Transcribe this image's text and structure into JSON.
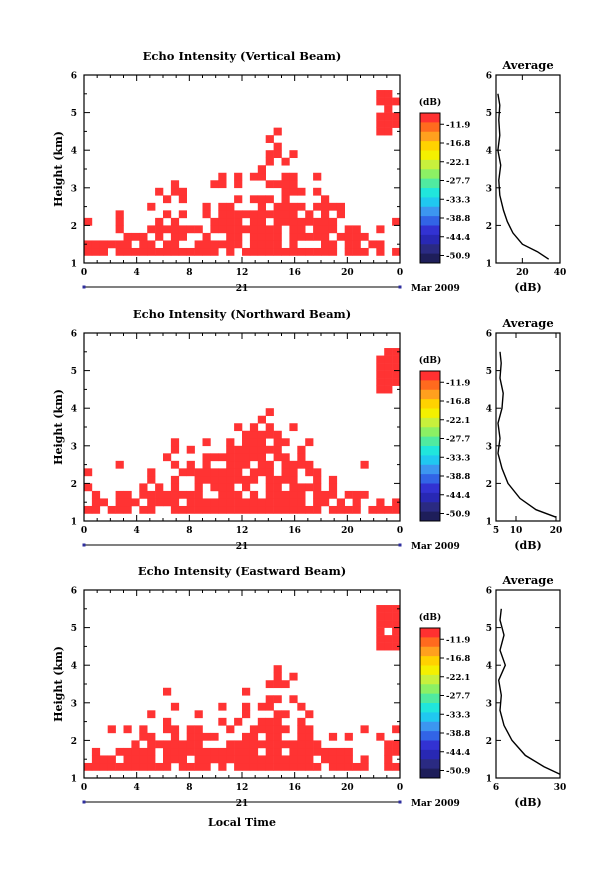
{
  "figure": {
    "date_label": "Mar 2009",
    "day_label": "21",
    "xlabel": "Local Time",
    "time_ticks": [
      "0",
      "4",
      "8",
      "12",
      "16",
      "20",
      "0"
    ],
    "height_ticks": [
      "1",
      "2",
      "3",
      "4",
      "5",
      "6"
    ],
    "ylabel": "Height (km)",
    "avg_title": "Average",
    "avg_xlabel": "(dB)",
    "colorbar_unit": "(dB)",
    "colorbar_labels": [
      "-11.9",
      "-16.8",
      "-22.1",
      "-27.7",
      "-33.3",
      "-38.8",
      "-44.4",
      "-50.9"
    ],
    "colorbar_colors": [
      "#ff3030",
      "#ff6a1e",
      "#ffa01e",
      "#ffd200",
      "#f4f000",
      "#c8f03c",
      "#8cf064",
      "#50eaa0",
      "#20e6dc",
      "#20c8f0",
      "#3c96f0",
      "#3264e6",
      "#3232d2",
      "#2828b4",
      "#2a2a82",
      "#1e1e5a"
    ],
    "echo_color": "#ff3333"
  },
  "panels": [
    {
      "title": "Echo Intensity (Vertical Beam)",
      "avg_ticks": [
        "20",
        "40"
      ],
      "avg_xlim": [
        6,
        40
      ],
      "height_top": [
        1.4,
        1.6,
        1.6,
        1.6,
        1.6,
        1.8,
        1.8,
        1.8,
        2.2,
        2.4,
        2.4,
        2.4,
        2.4,
        2.4,
        2.3,
        2.5,
        2.5,
        2.6,
        2.6,
        2.8,
        3.0,
        3.2,
        3.6,
        3.9,
        4.3,
        3.8,
        3.4,
        3.4,
        3.0,
        2.8,
        2.8,
        2.6,
        2.4,
        2.2,
        2.0,
        1.8,
        1.6,
        1.6,
        1.4,
        1.4
      ],
      "cloud_range": [
        4.4,
        5.5
      ],
      "avg_profile": [
        [
          34.0,
          1.1
        ],
        [
          28.0,
          1.3
        ],
        [
          20.0,
          1.5
        ],
        [
          15.0,
          1.8
        ],
        [
          12.0,
          2.1
        ],
        [
          10.0,
          2.4
        ],
        [
          8.0,
          2.8
        ],
        [
          7.5,
          3.2
        ],
        [
          8.5,
          3.6
        ],
        [
          7.0,
          4.0
        ],
        [
          8.0,
          4.4
        ],
        [
          7.5,
          4.8
        ],
        [
          8.0,
          5.2
        ],
        [
          7.0,
          5.5
        ]
      ]
    },
    {
      "title": "Echo Intensity (Northward Beam)",
      "avg_ticks": [
        "5",
        "10",
        "20"
      ],
      "avg_xlim": [
        5,
        21
      ],
      "height_top": [
        1.6,
        1.8,
        1.8,
        1.6,
        1.8,
        2.0,
        2.0,
        2.0,
        2.2,
        2.2,
        2.2,
        2.4,
        2.4,
        2.4,
        2.4,
        2.6,
        2.6,
        2.8,
        3.0,
        3.2,
        3.4,
        3.6,
        3.8,
        4.0,
        3.4,
        3.2,
        3.0,
        3.0,
        2.8,
        2.6,
        2.4,
        2.2,
        2.0,
        1.8,
        1.8,
        1.8,
        1.6,
        1.6,
        1.4,
        1.6
      ],
      "cloud_range": [
        4.4,
        5.5
      ],
      "avg_profile": [
        [
          20.0,
          1.1
        ],
        [
          15.0,
          1.3
        ],
        [
          11.0,
          1.6
        ],
        [
          8.0,
          2.0
        ],
        [
          6.5,
          2.4
        ],
        [
          5.5,
          2.8
        ],
        [
          6.0,
          3.2
        ],
        [
          5.5,
          3.6
        ],
        [
          6.5,
          4.0
        ],
        [
          6.8,
          4.4
        ],
        [
          6.0,
          4.8
        ],
        [
          6.3,
          5.2
        ],
        [
          6.0,
          5.5
        ]
      ]
    },
    {
      "title": "Echo Intensity (Eastward Beam)",
      "avg_ticks": [
        "6",
        "30"
      ],
      "avg_xlim": [
        6,
        30
      ],
      "height_top": [
        1.5,
        1.7,
        1.7,
        1.8,
        1.8,
        2.0,
        2.2,
        2.2,
        2.4,
        2.4,
        2.6,
        2.6,
        2.4,
        2.4,
        2.4,
        2.4,
        2.2,
        2.2,
        2.4,
        2.6,
        3.0,
        3.2,
        3.4,
        3.6,
        4.0,
        3.6,
        3.2,
        3.0,
        2.8,
        2.4,
        2.2,
        2.0,
        1.8,
        1.8,
        1.6,
        1.6,
        1.4,
        1.4,
        2.0,
        2.6
      ],
      "cloud_range": [
        4.5,
        5.5
      ],
      "avg_profile": [
        [
          30.0,
          1.1
        ],
        [
          24.0,
          1.3
        ],
        [
          17.0,
          1.6
        ],
        [
          12.0,
          2.0
        ],
        [
          9.0,
          2.4
        ],
        [
          7.5,
          2.8
        ],
        [
          8.0,
          3.2
        ],
        [
          7.0,
          3.6
        ],
        [
          9.5,
          4.0
        ],
        [
          7.5,
          4.4
        ],
        [
          9.0,
          4.8
        ],
        [
          7.5,
          5.2
        ],
        [
          8.0,
          5.5
        ]
      ]
    }
  ]
}
